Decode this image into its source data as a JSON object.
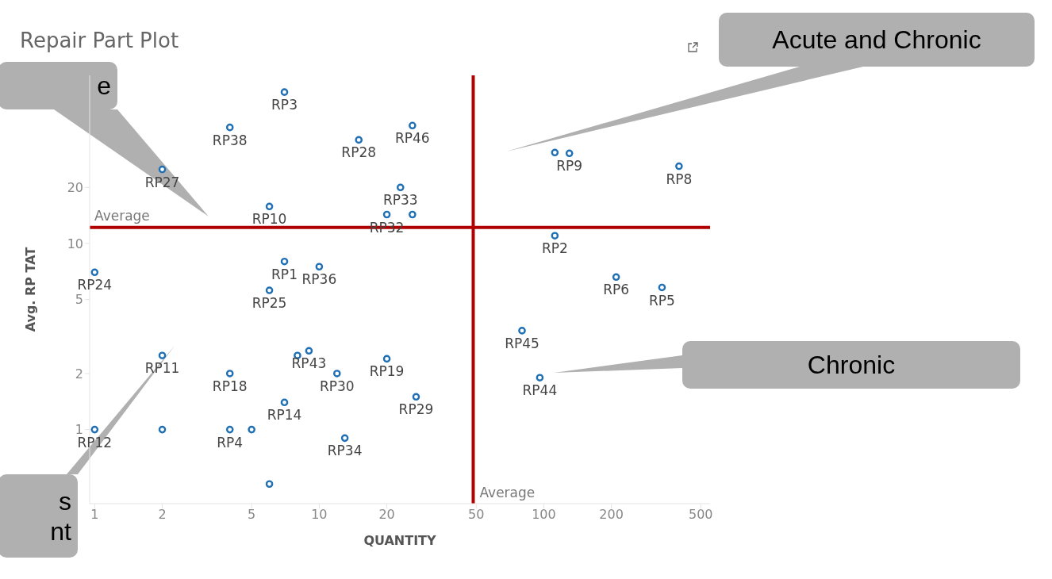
{
  "chart_data": {
    "type": "scatter",
    "title": "Repair Part Plot",
    "xlabel": "QUANTITY",
    "ylabel": "Avg. RP TAT",
    "log": "xy",
    "marker": "circle",
    "xlim": [
      0.95,
      550
    ],
    "xticks": [
      1,
      2,
      5,
      10,
      20,
      50,
      100,
      200,
      500
    ],
    "ylim": [
      0.4,
      80
    ],
    "yticks": [
      1,
      2,
      5,
      10,
      20
    ],
    "ref_lines": [
      {
        "axis": "y",
        "value": 12.2,
        "label": "Average",
        "color": "#b00000"
      },
      {
        "axis": "x",
        "value": 48.5,
        "label": "Average",
        "color": "#b00000"
      }
    ],
    "series": [
      {
        "color": "#1f6fb5",
        "x": [
          7,
          4,
          2,
          15,
          26,
          23,
          20,
          26,
          6,
          112,
          130,
          400,
          112,
          7,
          10,
          1,
          6,
          210,
          336,
          80,
          8,
          9,
          2,
          20,
          12,
          4,
          96,
          27,
          7,
          1,
          2,
          4,
          5,
          13,
          6
        ],
        "values": [
          65,
          42,
          25,
          36,
          43,
          20,
          14.3,
          14.3,
          15.8,
          30.8,
          30.5,
          26,
          11,
          8,
          7.5,
          7,
          5.6,
          6.6,
          5.8,
          3.4,
          2.5,
          2.65,
          2.5,
          2.4,
          2,
          2,
          1.9,
          1.5,
          1.4,
          1,
          1,
          1,
          1,
          0.9,
          0.51
        ]
      }
    ],
    "annotations": [
      "Acute and Chronic",
      "Chronic",
      "e",
      "s\nnt",
      {
        "text": "RP3",
        "x": 7,
        "y": 65
      },
      {
        "text": "RP38",
        "x": 4,
        "y": 42
      },
      {
        "text": "RP27",
        "x": 2,
        "y": 25
      },
      {
        "text": "RP28",
        "x": 15,
        "y": 36
      },
      {
        "text": "RP46",
        "x": 26,
        "y": 43
      },
      {
        "text": "RP33",
        "x": 23,
        "y": 20
      },
      {
        "text": "RP32",
        "x": 20,
        "y": 14.3
      },
      {
        "text": "RP10",
        "x": 6,
        "y": 15.8
      },
      {
        "text": "RP9",
        "x": 130,
        "y": 30.5
      },
      {
        "text": "RP8",
        "x": 400,
        "y": 26
      },
      {
        "text": "RP2",
        "x": 112,
        "y": 11
      },
      {
        "text": "RP1",
        "x": 7,
        "y": 8
      },
      {
        "text": "RP36",
        "x": 10,
        "y": 7.5
      },
      {
        "text": "RP24",
        "x": 1,
        "y": 7
      },
      {
        "text": "RP25",
        "x": 6,
        "y": 5.6
      },
      {
        "text": "RP6",
        "x": 210,
        "y": 6.6
      },
      {
        "text": "RP5",
        "x": 336,
        "y": 5.8
      },
      {
        "text": "RP45",
        "x": 80,
        "y": 3.4
      },
      {
        "text": "RP43",
        "x": 9,
        "y": 2.65
      },
      {
        "text": "RP11",
        "x": 2,
        "y": 2.5
      },
      {
        "text": "RP19",
        "x": 20,
        "y": 2.4
      },
      {
        "text": "RP30",
        "x": 12,
        "y": 2
      },
      {
        "text": "RP18",
        "x": 4,
        "y": 2
      },
      {
        "text": "RP44",
        "x": 96,
        "y": 1.9
      },
      {
        "text": "RP29",
        "x": 27,
        "y": 1.5
      },
      {
        "text": "RP14",
        "x": 7,
        "y": 1.4
      },
      {
        "text": "RP12",
        "x": 1,
        "y": 1
      },
      {
        "text": "RP4",
        "x": 4,
        "y": 1
      },
      {
        "text": "RP34",
        "x": 13,
        "y": 0.9
      }
    ]
  }
}
